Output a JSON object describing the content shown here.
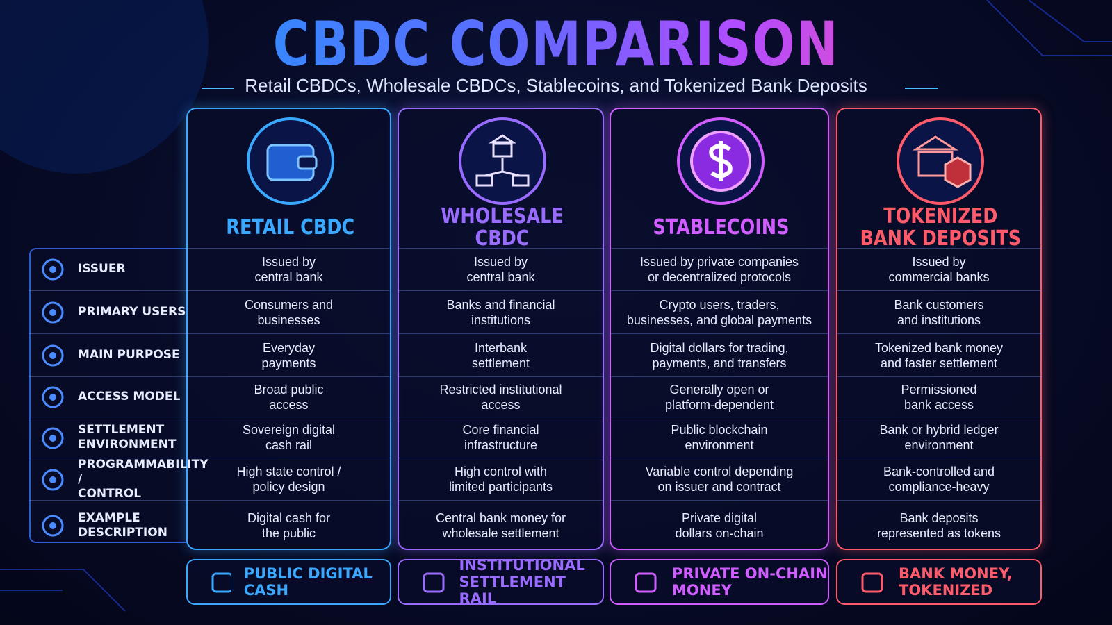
{
  "header": {
    "title": "CBDC COMPARISON",
    "subtitle": "Retail CBDCs, Wholesale CBDCs, Stablecoins, and Tokenized Bank Deposits"
  },
  "columns": [
    {
      "title": [
        "RETAIL CBDC"
      ],
      "tagline": [
        "PUBLIC DIGITAL CASH"
      ]
    },
    {
      "title": [
        "WHOLESALE CBDC"
      ],
      "tagline": [
        "INSTITUTIONAL",
        "SETTLEMENT RAIL"
      ]
    },
    {
      "title": [
        "STABLECOINS"
      ],
      "tagline": [
        "PRIVATE ON-CHAIN",
        "MONEY"
      ]
    },
    {
      "title": [
        "TOKENIZED",
        "BANK DEPOSITS"
      ],
      "tagline": [
        "BANK MONEY,",
        "TOKENIZED"
      ]
    }
  ],
  "rows": [
    {
      "label": [
        "ISSUER"
      ],
      "cells": [
        [
          "Issued by",
          "central bank"
        ],
        [
          "Issued by",
          "central bank"
        ],
        [
          "Issued by private companies",
          "or decentralized protocols"
        ],
        [
          "Issued by",
          "commercial banks"
        ]
      ]
    },
    {
      "label": [
        "PRIMARY USERS"
      ],
      "cells": [
        [
          "Consumers and",
          "businesses"
        ],
        [
          "Banks and financial",
          "institutions"
        ],
        [
          "Crypto users, traders,",
          "businesses, and global payments"
        ],
        [
          "Bank customers",
          "and institutions"
        ]
      ]
    },
    {
      "label": [
        "MAIN PURPOSE"
      ],
      "cells": [
        [
          "Everyday",
          "payments"
        ],
        [
          "Interbank",
          "settlement"
        ],
        [
          "Digital dollars for trading,",
          "payments, and transfers"
        ],
        [
          "Tokenized bank money",
          "and faster settlement"
        ]
      ]
    },
    {
      "label": [
        "ACCESS MODEL"
      ],
      "cells": [
        [
          "Broad public",
          "access"
        ],
        [
          "Restricted institutional",
          "access"
        ],
        [
          "Generally open or",
          "platform-dependent"
        ],
        [
          "Permissioned",
          "bank access"
        ]
      ]
    },
    {
      "label": [
        "SETTLEMENT",
        "ENVIRONMENT"
      ],
      "cells": [
        [
          "Sovereign digital",
          "cash rail"
        ],
        [
          "Core financial",
          "infrastructure"
        ],
        [
          "Public blockchain",
          "environment"
        ],
        [
          "Bank or hybrid ledger",
          "environment"
        ]
      ]
    },
    {
      "label": [
        "PROGRAMMABILITY /",
        "CONTROL"
      ],
      "cells": [
        [
          "High state control /",
          "policy design"
        ],
        [
          "High control with",
          "limited participants"
        ],
        [
          "Variable control depending",
          "on issuer and contract"
        ],
        [
          "Bank-controlled and",
          "compliance-heavy"
        ]
      ]
    },
    {
      "label": [
        "EXAMPLE DESCRIPTION"
      ],
      "cells": [
        [
          "Digital cash for",
          "the public"
        ],
        [
          "Central bank money for",
          "wholesale settlement"
        ],
        [
          "Private digital",
          "dollars on-chain"
        ],
        [
          "Bank deposits",
          "represented as tokens"
        ]
      ]
    }
  ]
}
